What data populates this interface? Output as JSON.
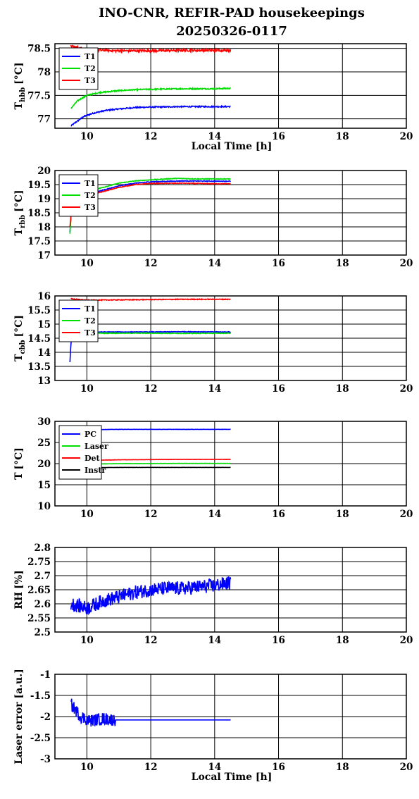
{
  "figure": {
    "title_line1": "INO-CNR, REFIR-PAD housekeepings",
    "title_line2": "20250326-0117"
  },
  "chart_data": [
    {
      "type": "line",
      "ylabel_main": "T",
      "ylabel_sub": "hbb",
      "ylabel_unit": "[°C]",
      "xlabel": "Local Time [h]",
      "xlim": [
        9,
        20
      ],
      "ylim": [
        76.8,
        78.6
      ],
      "xticks": [
        10,
        12,
        14,
        16,
        18,
        20
      ],
      "yticks": [
        77,
        77.5,
        78,
        78.5
      ],
      "ytick_labels": [
        "77",
        "77.5",
        "78",
        "78.5"
      ],
      "legend": {
        "position": "top-left",
        "entries": [
          "T1",
          "T2",
          "T3"
        ]
      },
      "series": [
        {
          "name": "T1",
          "color": "#0000ff",
          "points": [
            [
              9.5,
              76.85
            ],
            [
              9.7,
              76.95
            ],
            [
              9.9,
              77.05
            ],
            [
              10.2,
              77.12
            ],
            [
              10.6,
              77.18
            ],
            [
              11.0,
              77.21
            ],
            [
              11.5,
              77.24
            ],
            [
              12.0,
              77.25
            ],
            [
              13.0,
              77.26
            ],
            [
              14.0,
              77.26
            ],
            [
              14.5,
              77.26
            ]
          ],
          "noise": 0.025
        },
        {
          "name": "T2",
          "color": "#00dd00",
          "points": [
            [
              9.5,
              77.22
            ],
            [
              9.7,
              77.38
            ],
            [
              10.0,
              77.5
            ],
            [
              10.4,
              77.56
            ],
            [
              11.0,
              77.6
            ],
            [
              11.5,
              77.62
            ],
            [
              12.0,
              77.63
            ],
            [
              13.0,
              77.64
            ],
            [
              14.0,
              77.64
            ],
            [
              14.5,
              77.65
            ]
          ],
          "noise": 0.025
        },
        {
          "name": "T3",
          "color": "#ff0000",
          "points": [
            [
              9.5,
              78.55
            ],
            [
              10.0,
              78.47
            ],
            [
              11.0,
              78.45
            ],
            [
              12.0,
              78.45
            ],
            [
              13.0,
              78.46
            ],
            [
              14.5,
              78.46
            ]
          ],
          "noise": 0.05
        }
      ]
    },
    {
      "type": "line",
      "ylabel_main": "T",
      "ylabel_sub": "rbb",
      "ylabel_unit": "[°C]",
      "xlabel": "",
      "xlim": [
        9,
        20
      ],
      "ylim": [
        17,
        20
      ],
      "xticks": [
        10,
        12,
        14,
        16,
        18,
        20
      ],
      "yticks": [
        17,
        17.5,
        18,
        18.5,
        19,
        19.5,
        20
      ],
      "ytick_labels": [
        "17",
        "17.5",
        "18",
        "18.5",
        "19",
        "19.5",
        "20"
      ],
      "legend": {
        "position": "top-left",
        "entries": [
          "T1",
          "T2",
          "T3"
        ]
      },
      "series": [
        {
          "name": "T1",
          "color": "#0000ff",
          "points": [
            [
              9.47,
              17.8
            ],
            [
              9.52,
              18.7
            ],
            [
              9.6,
              19.05
            ],
            [
              10.0,
              19.15
            ],
            [
              10.5,
              19.3
            ],
            [
              11.0,
              19.45
            ],
            [
              11.5,
              19.55
            ],
            [
              12.0,
              19.6
            ],
            [
              13.0,
              19.63
            ],
            [
              14.0,
              19.62
            ],
            [
              14.5,
              19.62
            ]
          ],
          "noise": 0.025
        },
        {
          "name": "T2",
          "color": "#00dd00",
          "points": [
            [
              9.47,
              17.75
            ],
            [
              9.52,
              18.7
            ],
            [
              9.6,
              19.1
            ],
            [
              10.0,
              19.25
            ],
            [
              10.5,
              19.4
            ],
            [
              11.0,
              19.55
            ],
            [
              11.5,
              19.63
            ],
            [
              12.0,
              19.67
            ],
            [
              12.8,
              19.72
            ],
            [
              13.5,
              19.7
            ],
            [
              14.5,
              19.7
            ]
          ],
          "noise": 0.025
        },
        {
          "name": "T3",
          "color": "#ff0000",
          "points": [
            [
              9.47,
              18.0
            ],
            [
              9.52,
              18.6
            ],
            [
              9.6,
              19.0
            ],
            [
              10.0,
              19.1
            ],
            [
              10.5,
              19.25
            ],
            [
              11.0,
              19.4
            ],
            [
              11.5,
              19.5
            ],
            [
              12.0,
              19.54
            ],
            [
              13.0,
              19.55
            ],
            [
              14.0,
              19.53
            ],
            [
              14.5,
              19.53
            ]
          ],
          "noise": 0.02
        }
      ]
    },
    {
      "type": "line",
      "ylabel_main": "T",
      "ylabel_sub": "cbb",
      "ylabel_unit": "[°C]",
      "xlabel": "",
      "xlim": [
        9,
        20
      ],
      "ylim": [
        13,
        16
      ],
      "xticks": [
        10,
        12,
        14,
        16,
        18,
        20
      ],
      "yticks": [
        13,
        13.5,
        14,
        14.5,
        15,
        15.5,
        16
      ],
      "ytick_labels": [
        "13",
        "13.5",
        "14",
        "14.5",
        "15",
        "15.5",
        "16"
      ],
      "legend": {
        "position": "top-left",
        "entries": [
          "T1",
          "T2",
          "T3"
        ]
      },
      "series": [
        {
          "name": "T1",
          "color": "#0000ff",
          "points": [
            [
              9.47,
              13.65
            ],
            [
              9.5,
              14.3
            ],
            [
              9.55,
              14.7
            ],
            [
              9.7,
              14.72
            ],
            [
              11.0,
              14.72
            ],
            [
              12.0,
              14.72
            ],
            [
              13.0,
              14.73
            ],
            [
              14.5,
              14.72
            ]
          ],
          "noise": 0.02
        },
        {
          "name": "T2",
          "color": "#00dd00",
          "points": [
            [
              9.5,
              14.65
            ],
            [
              9.7,
              14.68
            ],
            [
              11.0,
              14.68
            ],
            [
              12.0,
              14.68
            ],
            [
              13.0,
              14.67
            ],
            [
              14.5,
              14.68
            ]
          ],
          "noise": 0.025
        },
        {
          "name": "T3",
          "color": "#ff0000",
          "points": [
            [
              9.5,
              15.9
            ],
            [
              10.0,
              15.85
            ],
            [
              11.0,
              15.86
            ],
            [
              12.0,
              15.87
            ],
            [
              13.0,
              15.88
            ],
            [
              14.5,
              15.88
            ]
          ],
          "noise": 0.025
        }
      ]
    },
    {
      "type": "line",
      "ylabel_main": "T",
      "ylabel_sub": "",
      "ylabel_unit": "[°C]",
      "xlabel": "",
      "xlim": [
        9,
        20
      ],
      "ylim": [
        10,
        30
      ],
      "xticks": [
        10,
        12,
        14,
        16,
        18,
        20
      ],
      "yticks": [
        10,
        15,
        20,
        25,
        30
      ],
      "ytick_labels": [
        "10",
        "15",
        "20",
        "25",
        "30"
      ],
      "legend": {
        "position": "top-left",
        "entries": [
          "PC",
          "Laser",
          "Det",
          "Instr"
        ]
      },
      "series": [
        {
          "name": "PC",
          "color": "#0000ff",
          "points": [
            [
              9.5,
              28.0
            ],
            [
              11.0,
              28.1
            ],
            [
              13.0,
              28.1
            ],
            [
              14.5,
              28.1
            ]
          ],
          "noise": 0.05
        },
        {
          "name": "Laser",
          "color": "#00dd00",
          "points": [
            [
              9.5,
              19.8
            ],
            [
              11.0,
              20.0
            ],
            [
              13.0,
              20.05
            ],
            [
              14.5,
              20.05
            ]
          ],
          "noise": 0.06
        },
        {
          "name": "Det",
          "color": "#ff0000",
          "points": [
            [
              9.5,
              20.7
            ],
            [
              11.0,
              20.9
            ],
            [
              13.0,
              21.0
            ],
            [
              14.5,
              21.0
            ]
          ],
          "noise": 0.06
        },
        {
          "name": "Instr",
          "color": "#000000",
          "points": [
            [
              9.5,
              19.0
            ],
            [
              11.0,
              19.1
            ],
            [
              13.0,
              19.1
            ],
            [
              14.5,
              19.1
            ]
          ],
          "noise": 0.04
        }
      ]
    },
    {
      "type": "line",
      "ylabel_main": "RH",
      "ylabel_sub": "",
      "ylabel_unit": "[%]",
      "xlabel": "",
      "xlim": [
        9,
        20
      ],
      "ylim": [
        2.5,
        2.8
      ],
      "xticks": [
        10,
        12,
        14,
        16,
        18,
        20
      ],
      "yticks": [
        2.5,
        2.55,
        2.6,
        2.65,
        2.7,
        2.75,
        2.8
      ],
      "ytick_labels": [
        "2.5",
        "2.55",
        "2.6",
        "2.65",
        "2.7",
        "2.75",
        "2.8"
      ],
      "legend": null,
      "series": [
        {
          "name": "",
          "color": "#0000ff",
          "points": [
            [
              9.5,
              2.6
            ],
            [
              10.0,
              2.585
            ],
            [
              10.5,
              2.61
            ],
            [
              11.0,
              2.625
            ],
            [
              11.5,
              2.64
            ],
            [
              12.0,
              2.65
            ],
            [
              12.5,
              2.655
            ],
            [
              13.0,
              2.655
            ],
            [
              13.5,
              2.66
            ],
            [
              14.0,
              2.665
            ],
            [
              14.5,
              2.675
            ]
          ],
          "noise": 0.05
        }
      ]
    },
    {
      "type": "line",
      "ylabel_main": "Laser error [a.u.]",
      "ylabel_sub": "",
      "ylabel_unit": "",
      "xlabel": "Local Time [h]",
      "xlim": [
        9,
        20
      ],
      "ylim": [
        -3,
        -1
      ],
      "xticks": [
        10,
        12,
        14,
        16,
        18,
        20
      ],
      "yticks": [
        -3,
        -2.5,
        -2,
        -1.5,
        -1
      ],
      "ytick_labels": [
        "-3",
        "-2.5",
        "-2",
        "-1.5",
        "-1"
      ],
      "legend": null,
      "series": [
        {
          "name": "",
          "color": "#0000ff",
          "points": [
            [
              9.5,
              -1.7
            ],
            [
              9.8,
              -2.0
            ],
            [
              10.1,
              -2.1
            ],
            [
              10.5,
              -2.05
            ],
            [
              10.9,
              -2.08
            ],
            [
              11.0,
              -2.08
            ],
            [
              12.0,
              -2.08
            ],
            [
              13.0,
              -2.08
            ],
            [
              14.5,
              -2.08
            ]
          ],
          "noise": 0.0,
          "noisy_until": 10.9,
          "noisy_amp": 0.3
        }
      ]
    }
  ]
}
